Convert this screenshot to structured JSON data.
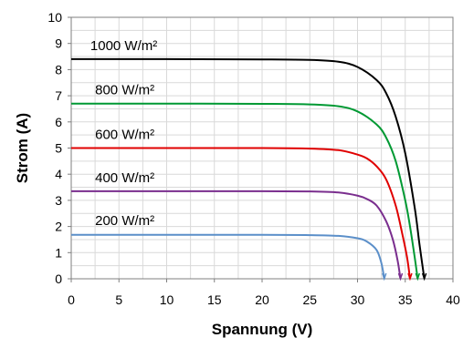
{
  "chart_data": {
    "type": "line",
    "title": "",
    "xlabel": "Spannung (V)",
    "ylabel": "Strom (A)",
    "xlim": [
      0,
      40
    ],
    "ylim": [
      0,
      10
    ],
    "xticks": [
      0,
      5,
      10,
      15,
      20,
      25,
      30,
      35,
      40
    ],
    "yticks": [
      0,
      1,
      2,
      3,
      4,
      5,
      6,
      7,
      8,
      9,
      10
    ],
    "grid": true,
    "legend": "none",
    "series": [
      {
        "name": "1000 W/m²",
        "color": "#000000",
        "x": [
          0,
          10,
          20,
          25,
          28,
          30,
          32,
          33,
          34,
          35,
          36,
          36.5,
          37
        ],
        "y": [
          8.4,
          8.4,
          8.39,
          8.37,
          8.3,
          8.1,
          7.6,
          7.1,
          6.2,
          4.8,
          2.7,
          1.3,
          0
        ]
      },
      {
        "name": "800 W/m²",
        "color": "#009933",
        "x": [
          0,
          10,
          20,
          25,
          28,
          30,
          32,
          33,
          34,
          35,
          35.5,
          36,
          36.3
        ],
        "y": [
          6.7,
          6.7,
          6.69,
          6.67,
          6.6,
          6.4,
          5.9,
          5.4,
          4.5,
          3.0,
          2.0,
          0.8,
          0
        ]
      },
      {
        "name": "600 W/m²",
        "color": "#e00000",
        "x": [
          0,
          10,
          20,
          25,
          28,
          30,
          31,
          32,
          33,
          34,
          34.7,
          35.2,
          35.5
        ],
        "y": [
          5.0,
          5.0,
          5.0,
          4.98,
          4.92,
          4.75,
          4.6,
          4.3,
          3.8,
          2.8,
          1.7,
          0.8,
          0
        ]
      },
      {
        "name": "400 W/m²",
        "color": "#7a2e8e",
        "x": [
          0,
          10,
          20,
          25,
          28,
          30,
          31,
          32,
          33,
          33.7,
          34.2,
          34.5
        ],
        "y": [
          3.35,
          3.35,
          3.35,
          3.34,
          3.3,
          3.18,
          3.05,
          2.8,
          2.2,
          1.5,
          0.7,
          0
        ]
      },
      {
        "name": "200 W/m²",
        "color": "#5b8fc9",
        "x": [
          0,
          10,
          20,
          25,
          28,
          30,
          31,
          32,
          32.5,
          32.8
        ],
        "y": [
          1.68,
          1.68,
          1.68,
          1.67,
          1.64,
          1.55,
          1.42,
          1.1,
          0.6,
          0
        ]
      }
    ],
    "annotations": [
      {
        "text": "1000 W/m²",
        "x": 2.0,
        "y": 8.75
      },
      {
        "text": "800 W/m²",
        "x": 2.5,
        "y": 7.05
      },
      {
        "text": "600 W/m²",
        "x": 2.5,
        "y": 5.35
      },
      {
        "text": "400 W/m²",
        "x": 2.5,
        "y": 3.7
      },
      {
        "text": "200 W/m²",
        "x": 2.5,
        "y": 2.05
      }
    ]
  }
}
